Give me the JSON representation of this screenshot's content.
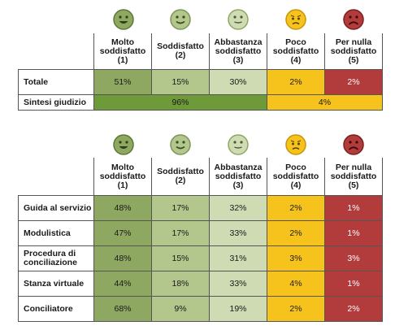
{
  "colors": {
    "molto": "#8ea862",
    "soddisfatto": "#b3c68c",
    "abbastanza": "#cfdbb3",
    "poco": "#f6c21c",
    "per_nulla": "#b23b3b",
    "sintesi_positivo": "#6f9a3a",
    "sintesi_negativo": "#f6c21c"
  },
  "icons": [
    "very-happy-face-icon",
    "happy-face-icon",
    "neutral-face-icon",
    "worried-face-icon",
    "sad-face-icon"
  ],
  "chart_data": [
    {
      "type": "table",
      "columns": [
        "Molto\nsoddisfatto\n(1)",
        "Soddisfatto\n(2)",
        "Abbastanza\nsoddisfatto\n(3)",
        "Poco\nsoddisfatto\n(4)",
        "Per nulla\nsoddisfatto\n(5)"
      ],
      "rows": [
        {
          "label": "Totale",
          "values": [
            "51%",
            "15%",
            "30%",
            "2%",
            "2%"
          ]
        }
      ],
      "summary": {
        "label": "Sintesi giudizio",
        "positive": "96%",
        "negative": "4%"
      }
    },
    {
      "type": "table",
      "columns": [
        "Molto\nsoddisfatto\n(1)",
        "Soddisfatto\n(2)",
        "Abbastanza\nsoddisfatto\n(3)",
        "Poco\nsoddisfatto\n(4)",
        "Per nulla\nsoddisfatto\n(5)"
      ],
      "rows": [
        {
          "label": "Guida al servizio",
          "values": [
            "48%",
            "17%",
            "32%",
            "2%",
            "1%"
          ]
        },
        {
          "label": "Modulistica",
          "values": [
            "47%",
            "17%",
            "33%",
            "2%",
            "1%"
          ]
        },
        {
          "label": "Procedura di\nconciliazione",
          "values": [
            "48%",
            "15%",
            "31%",
            "3%",
            "3%"
          ]
        },
        {
          "label": "Stanza virtuale",
          "values": [
            "44%",
            "18%",
            "33%",
            "4%",
            "1%"
          ]
        },
        {
          "label": "Conciliatore",
          "values": [
            "68%",
            "9%",
            "19%",
            "2%",
            "2%"
          ]
        }
      ]
    }
  ]
}
